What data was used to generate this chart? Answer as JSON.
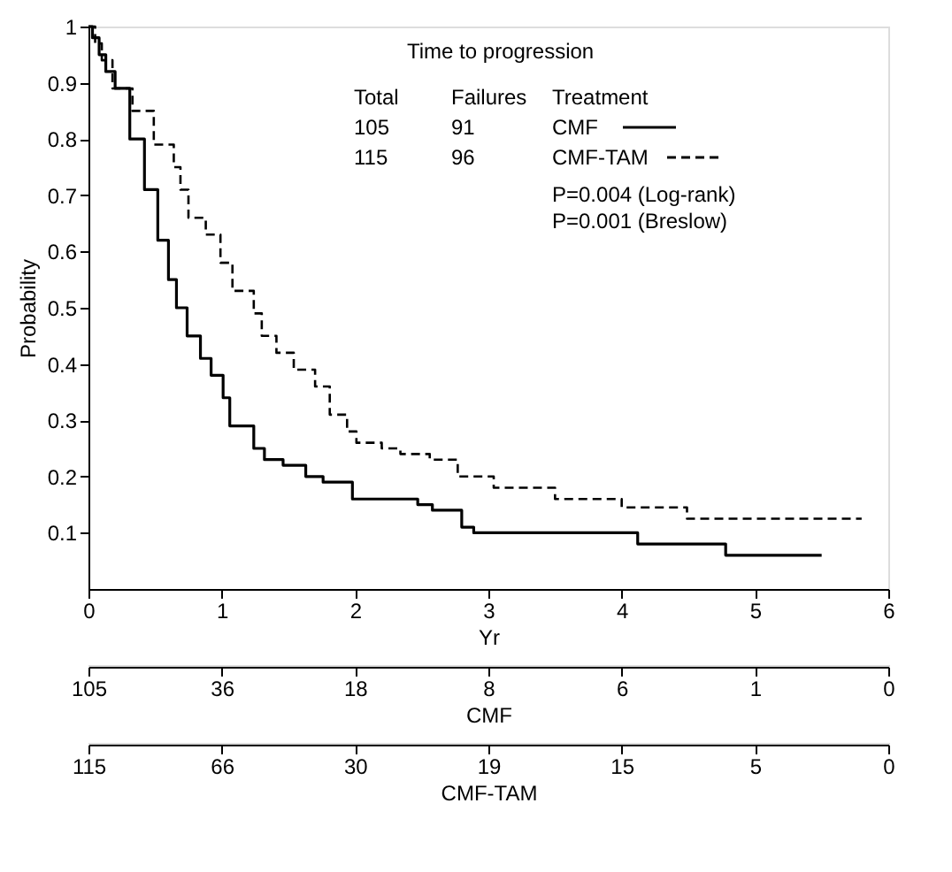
{
  "chart_data": [
    {
      "type": "step",
      "title": "Time to progression",
      "xlabel": "Yr",
      "ylabel": "Probability",
      "legend_title": "Treatment",
      "legend": "top right",
      "xlim": [
        0,
        6
      ],
      "xticks": [
        0,
        1,
        2,
        3,
        4,
        5,
        6
      ],
      "ylim": [
        0,
        1
      ],
      "yticks": [
        0.1,
        0.2,
        0.3,
        0.4,
        0.5,
        0.6,
        0.7,
        0.8,
        0.9,
        1
      ],
      "grid": false,
      "annotations": [
        "Total",
        "Failures",
        "105",
        "91",
        "115",
        "96",
        "P=0.004 (Log-rank)",
        "P=0.001 (Breslow)"
      ],
      "series": [
        {
          "name": "CMF",
          "color": "#000000",
          "line_style": "solid",
          "x": [
            0,
            0.03,
            0.08,
            0.13,
            0.2,
            0.31,
            0.42,
            0.52,
            0.6,
            0.66,
            0.74,
            0.84,
            0.92,
            1.01,
            1.06,
            1.24,
            1.32,
            1.46,
            1.63,
            1.76,
            1.98,
            2.47,
            2.58,
            2.8,
            2.89,
            4.12,
            4.78,
            5.5
          ],
          "values": [
            1,
            0.98,
            0.95,
            0.92,
            0.89,
            0.8,
            0.71,
            0.62,
            0.55,
            0.5,
            0.45,
            0.41,
            0.38,
            0.34,
            0.29,
            0.25,
            0.23,
            0.22,
            0.2,
            0.19,
            0.16,
            0.15,
            0.14,
            0.11,
            0.1,
            0.08,
            0.06,
            0.06
          ]
        },
        {
          "name": "CMF-TAM",
          "color": "#000000",
          "line_style": "dashed",
          "x": [
            0,
            0.05,
            0.1,
            0.18,
            0.33,
            0.49,
            0.64,
            0.69,
            0.75,
            0.88,
            0.99,
            1.08,
            1.24,
            1.3,
            1.41,
            1.54,
            1.7,
            1.81,
            1.94,
            2.01,
            2.2,
            2.34,
            2.56,
            2.77,
            3.04,
            3.5,
            4.0,
            4.49,
            5.8
          ],
          "values": [
            1,
            0.97,
            0.94,
            0.89,
            0.85,
            0.79,
            0.75,
            0.71,
            0.66,
            0.63,
            0.58,
            0.53,
            0.49,
            0.45,
            0.42,
            0.39,
            0.36,
            0.31,
            0.28,
            0.26,
            0.25,
            0.24,
            0.23,
            0.2,
            0.18,
            0.16,
            0.145,
            0.125,
            0.125
          ]
        }
      ]
    },
    {
      "type": "other",
      "xlabel": "CMF",
      "categories": [
        "105",
        "36",
        "18",
        "8",
        "6",
        "1",
        "0"
      ]
    },
    {
      "type": "other",
      "xlabel": "CMF-TAM",
      "categories": [
        "115",
        "66",
        "30",
        "19",
        "15",
        "5",
        "0"
      ]
    }
  ]
}
